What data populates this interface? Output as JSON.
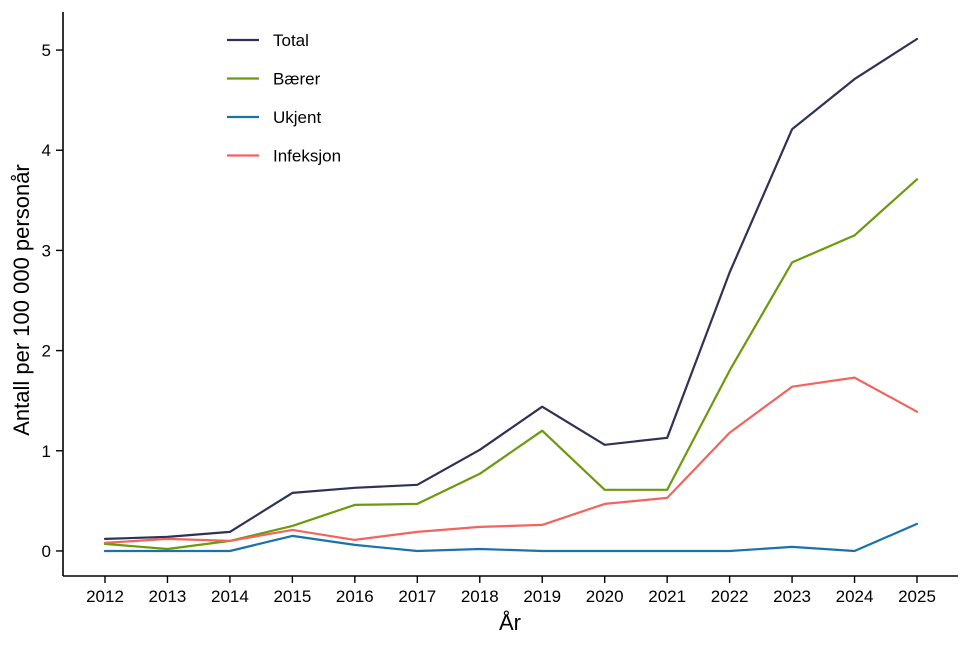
{
  "chart_data": {
    "type": "line",
    "title": "",
    "xlabel": "År",
    "ylabel": "Antall per 100 000 personår",
    "x": [
      2012,
      2013,
      2014,
      2015,
      2016,
      2017,
      2018,
      2019,
      2020,
      2021,
      2022,
      2023,
      2024,
      2025
    ],
    "x_tick_labels": [
      "2012",
      "2013",
      "2014",
      "2015",
      "2016",
      "2017",
      "2018",
      "2019",
      "2020",
      "2021",
      "2022",
      "2023",
      "2024",
      "2025"
    ],
    "y_ticks": [
      0,
      1,
      2,
      3,
      4,
      5
    ],
    "y_tick_labels": [
      "0",
      "1",
      "2",
      "3",
      "4",
      "5"
    ],
    "ylim": [
      -0.25,
      5.38
    ],
    "grid": false,
    "legend_position": "top-left",
    "series": [
      {
        "name": "Total",
        "color": "#2e3254",
        "values": [
          0.12,
          0.14,
          0.19,
          0.58,
          0.63,
          0.66,
          1.01,
          1.44,
          1.06,
          1.13,
          2.78,
          4.21,
          4.71,
          5.11
        ]
      },
      {
        "name": "Bærer",
        "color": "#6b9a0d",
        "values": [
          0.07,
          0.02,
          0.1,
          0.25,
          0.46,
          0.47,
          0.77,
          1.2,
          0.61,
          0.61,
          1.8,
          2.88,
          3.15,
          3.71
        ]
      },
      {
        "name": "Ukjent",
        "color": "#1a72ad",
        "values": [
          0.0,
          0.0,
          0.0,
          0.15,
          0.06,
          0.0,
          0.02,
          0.0,
          0.0,
          0.0,
          0.0,
          0.04,
          0.0,
          0.27
        ]
      },
      {
        "name": "Infeksjon",
        "color": "#f2645c",
        "values": [
          0.08,
          0.12,
          0.1,
          0.21,
          0.11,
          0.19,
          0.24,
          0.26,
          0.47,
          0.53,
          1.18,
          1.64,
          1.73,
          1.39
        ]
      }
    ]
  }
}
